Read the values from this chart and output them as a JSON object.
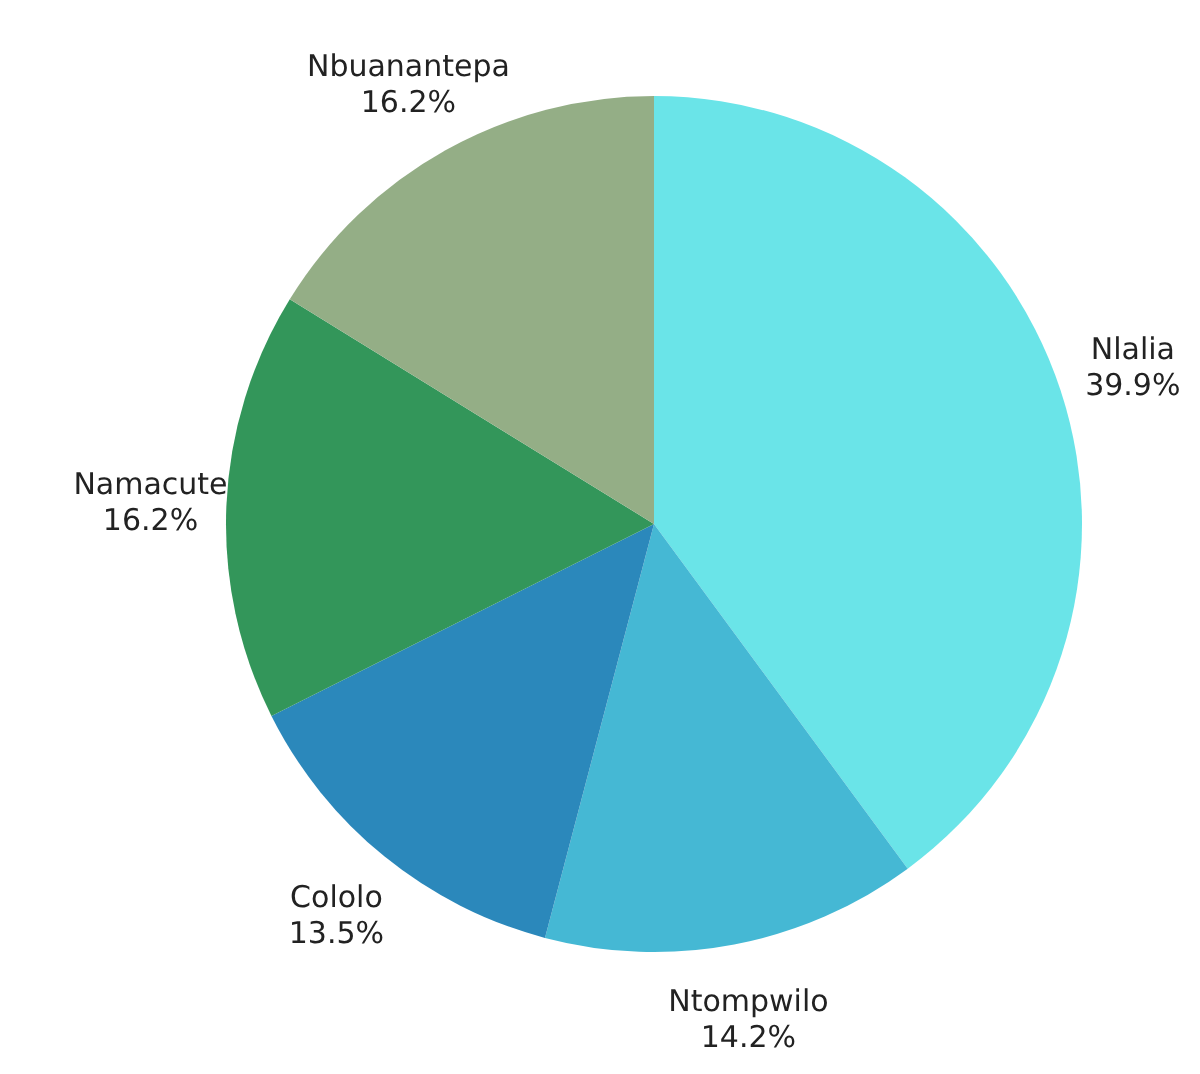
{
  "chart_data": {
    "type": "pie",
    "categories": [
      "Nlalia",
      "Ntompwilo",
      "Cololo",
      "Namacute",
      "Nbuanantepa"
    ],
    "values": [
      39.9,
      14.2,
      13.5,
      16.2,
      16.2
    ],
    "value_labels": [
      "39.9%",
      "14.2%",
      "13.5%",
      "16.2%",
      "16.2%"
    ],
    "colors": [
      "#6ae4e8",
      "#45b8d4",
      "#2b88bb",
      "#33965a",
      "#94ae86"
    ]
  }
}
